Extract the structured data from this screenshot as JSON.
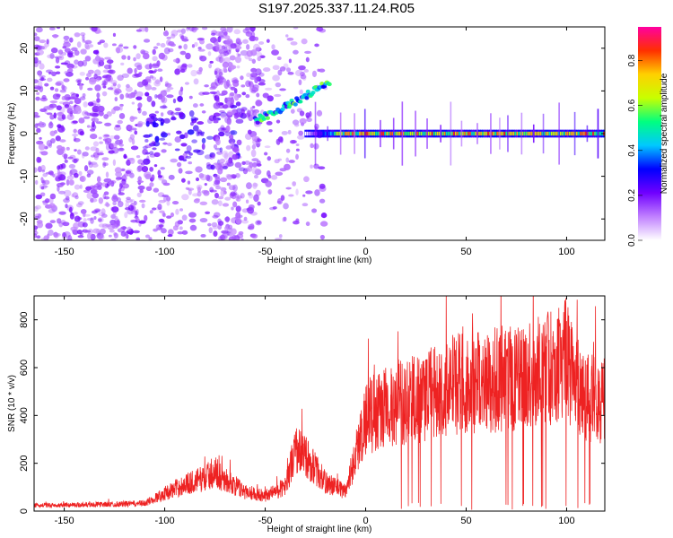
{
  "page": {
    "title": "S197.2025.337.11.24.R05"
  },
  "chart_data": [
    {
      "type": "heatmap",
      "title": "S197.2025.337.11.24.R05",
      "xlabel": "Height of straight line (km)",
      "ylabel": "Frequency (Hz)",
      "xlim": [
        -165,
        119
      ],
      "ylim": [
        -25,
        25
      ],
      "x_ticks": [
        -150,
        -100,
        -50,
        0,
        50,
        100
      ],
      "y_ticks": [
        -20,
        -10,
        0,
        10,
        20
      ],
      "colorbar": {
        "label": "Normalized spectral amplitude",
        "range": [
          0.0,
          0.95
        ],
        "ticks": [
          0.0,
          0.2,
          0.4,
          0.6,
          0.8
        ],
        "tick_labels": [
          "0.0",
          "0.2",
          "0.4",
          "0.6",
          "0.8"
        ],
        "colormap": [
          "#ffffff",
          "#c080ff",
          "#7000ff",
          "#0000ff",
          "#00c8ff",
          "#00ff80",
          "#c8ff00",
          "#ffd000",
          "#ff3000",
          "#ff00a0"
        ]
      },
      "features": [
        {
          "name": "scattered noise",
          "x_range": [
            -165,
            -20
          ],
          "freq_range": [
            -25,
            25
          ],
          "amplitude": 0.1
        },
        {
          "name": "narrow carrier line",
          "x_range": [
            -30,
            119
          ],
          "freq": 0,
          "amplitude": 0.9
        },
        {
          "name": "rising track",
          "x_range": [
            -55,
            -18
          ],
          "freq_start": 3,
          "freq_end": 12,
          "amplitude": 0.5
        }
      ]
    },
    {
      "type": "line",
      "xlabel": "Height of straight line (km)",
      "ylabel": "SNR (10 * v/v)",
      "xlim": [
        -165,
        119
      ],
      "ylim": [
        0,
        900
      ],
      "x_ticks": [
        -150,
        -100,
        -50,
        0,
        50,
        100
      ],
      "y_ticks": [
        0,
        200,
        400,
        600,
        800
      ],
      "series": [
        {
          "name": "SNR",
          "color": "#ee2222",
          "x": [
            -165,
            -150,
            -130,
            -110,
            -100,
            -90,
            -80,
            -75,
            -70,
            -60,
            -50,
            -40,
            -35,
            -30,
            -20,
            -10,
            0,
            5,
            10,
            20,
            30,
            40,
            50,
            60,
            70,
            80,
            90,
            100,
            105,
            110,
            119
          ],
          "y": [
            25,
            28,
            30,
            35,
            80,
            120,
            150,
            180,
            140,
            90,
            70,
            110,
            280,
            250,
            130,
            90,
            420,
            450,
            470,
            500,
            520,
            560,
            580,
            590,
            600,
            610,
            640,
            700,
            560,
            520,
            500
          ]
        }
      ]
    }
  ]
}
